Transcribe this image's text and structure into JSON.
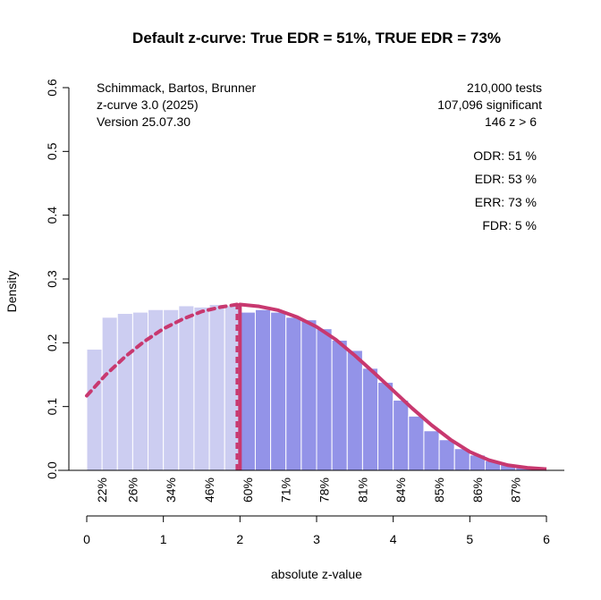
{
  "chart_data": {
    "type": "bar",
    "title": "Default z-curve: True EDR = 51%, TRUE EDR = 73%",
    "xlabel": "absolute z-value",
    "ylabel": "Density",
    "xlim": [
      0,
      6
    ],
    "ylim": [
      0,
      0.6
    ],
    "x_ticks": [
      "0",
      "1",
      "2",
      "3",
      "4",
      "5",
      "6"
    ],
    "y_ticks": [
      "0.0",
      "0.1",
      "0.2",
      "0.3",
      "0.4",
      "0.5",
      "0.6"
    ],
    "bin_width": 0.2,
    "significance_cutoff": 1.96,
    "bins_nonsignificant": {
      "x_start": [
        0.0,
        0.2,
        0.4,
        0.6,
        0.8,
        1.0,
        1.2,
        1.4,
        1.6,
        1.8
      ],
      "values": [
        0.19,
        0.24,
        0.246,
        0.248,
        0.252,
        0.252,
        0.258,
        0.256,
        0.26,
        0.258
      ],
      "color": "#cccdf1"
    },
    "bins_significant": {
      "x_start": [
        2.0,
        2.2,
        2.4,
        2.6,
        2.8,
        3.0,
        3.2,
        3.4,
        3.6,
        3.8,
        4.0,
        4.2,
        4.4,
        4.6,
        4.8,
        5.0,
        5.2,
        5.4,
        5.6,
        5.8
      ],
      "values": [
        0.248,
        0.252,
        0.248,
        0.24,
        0.236,
        0.222,
        0.204,
        0.188,
        0.16,
        0.138,
        0.11,
        0.085,
        0.062,
        0.048,
        0.034,
        0.024,
        0.015,
        0.009,
        0.005,
        0.003
      ],
      "color": "#9393e8"
    },
    "curve_dashed": {
      "x": [
        0.0,
        0.25,
        0.5,
        0.75,
        1.0,
        1.25,
        1.5,
        1.75,
        1.96
      ],
      "y": [
        0.117,
        0.15,
        0.178,
        0.202,
        0.222,
        0.237,
        0.249,
        0.256,
        0.26
      ],
      "color": "#c8386f"
    },
    "curve_solid": {
      "x": [
        2.0,
        2.25,
        2.5,
        2.75,
        3.0,
        3.25,
        3.5,
        3.75,
        4.0,
        4.25,
        4.5,
        4.75,
        5.0,
        5.25,
        5.5,
        5.75,
        6.0
      ],
      "y": [
        0.26,
        0.257,
        0.251,
        0.24,
        0.225,
        0.205,
        0.18,
        0.153,
        0.125,
        0.097,
        0.071,
        0.048,
        0.029,
        0.016,
        0.008,
        0.004,
        0.002
      ],
      "color": "#c8386f"
    },
    "power_labels": [
      {
        "x": 0.2,
        "label": "22%"
      },
      {
        "x": 0.6,
        "label": "26%"
      },
      {
        "x": 1.1,
        "label": "34%"
      },
      {
        "x": 1.6,
        "label": "46%"
      },
      {
        "x": 2.1,
        "label": "60%"
      },
      {
        "x": 2.6,
        "label": "71%"
      },
      {
        "x": 3.1,
        "label": "78%"
      },
      {
        "x": 3.6,
        "label": "81%"
      },
      {
        "x": 4.1,
        "label": "84%"
      },
      {
        "x": 4.6,
        "label": "85%"
      },
      {
        "x": 5.1,
        "label": "86%"
      },
      {
        "x": 5.6,
        "label": "87%"
      }
    ]
  },
  "info_left": [
    "Schimmack, Bartos, Brunner",
    "z-curve 3.0 (2025)",
    "Version 25.07.30"
  ],
  "info_right": [
    "210,000 tests",
    "107,096 significant",
    "146 z > 6"
  ],
  "stats": [
    "ODR:  51 %",
    "EDR:  53 %",
    "ERR:  73 %",
    "FDR:   5 %"
  ]
}
